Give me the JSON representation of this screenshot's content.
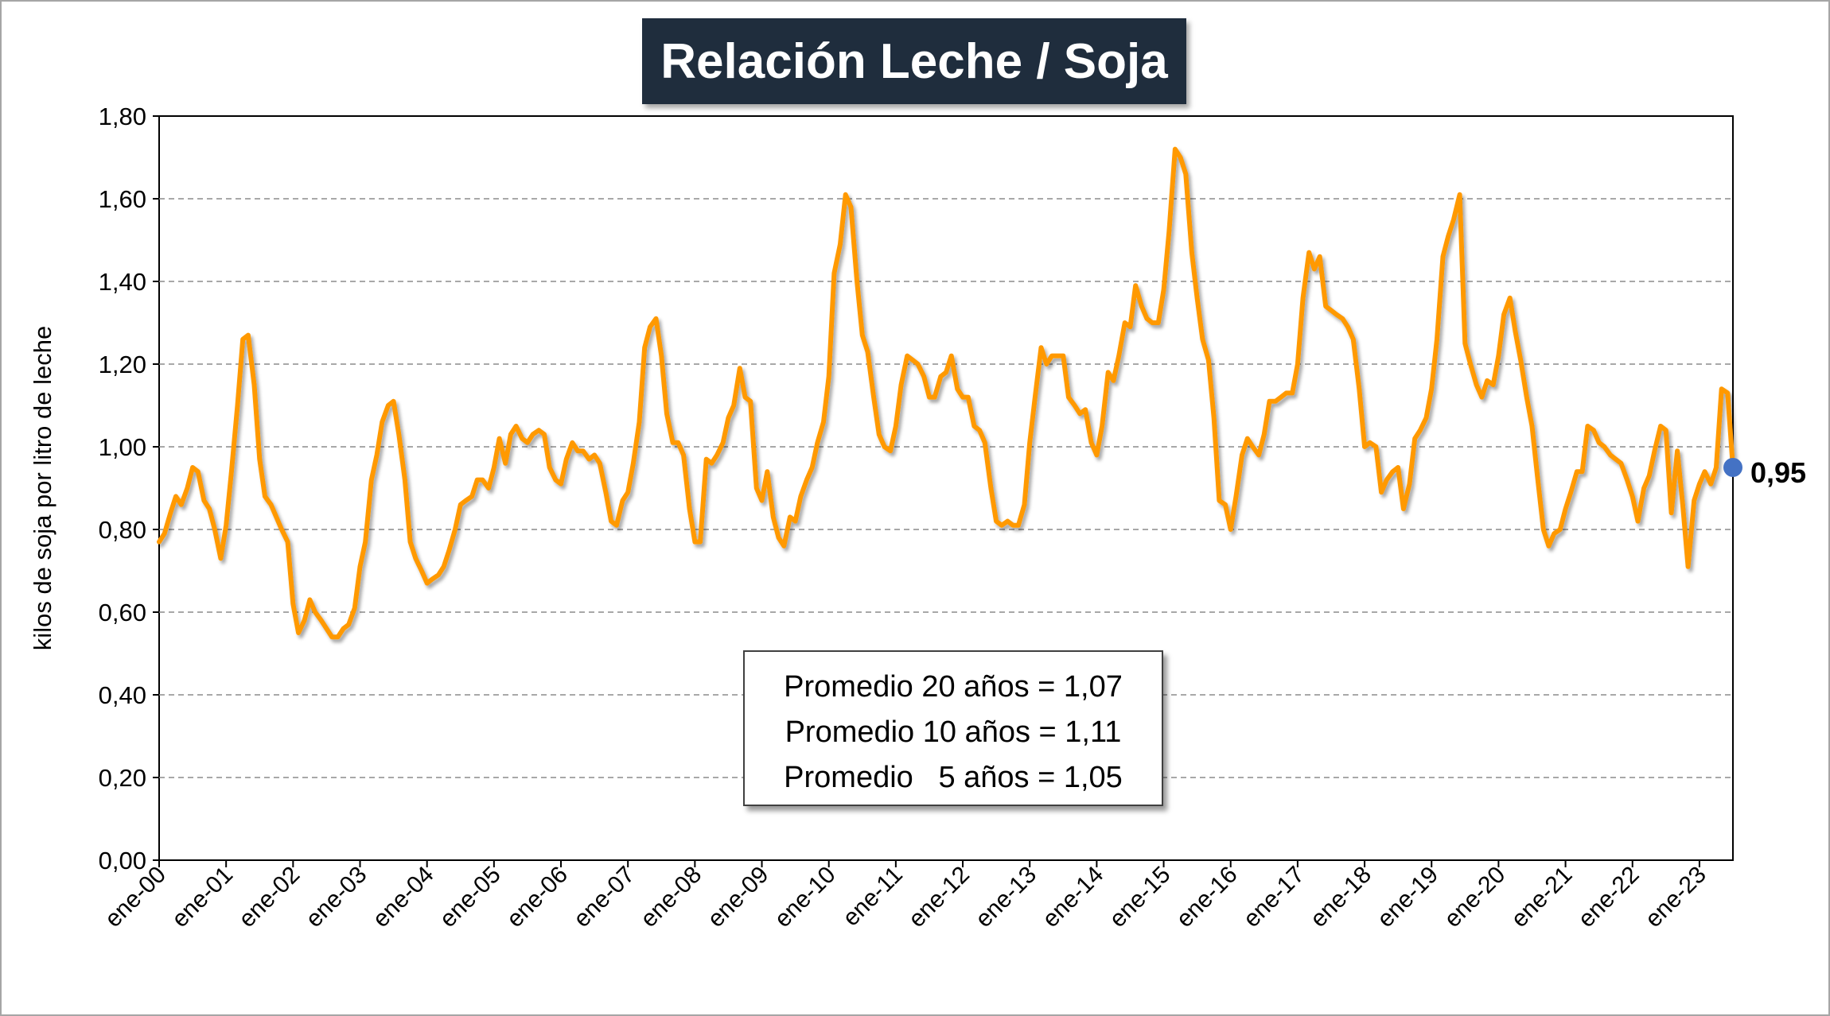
{
  "chart_data": {
    "type": "line",
    "title": "Relación Leche / Soja",
    "ylabel": "kilos de soja por litro de leche",
    "xlabel": "",
    "ylim": [
      0,
      1.8
    ],
    "y_ticks": [
      "0,00",
      "0,20",
      "0,40",
      "0,60",
      "0,80",
      "1,00",
      "1,20",
      "1,40",
      "1,60",
      "1,80"
    ],
    "x_ticks": [
      "ene-00",
      "ene-01",
      "ene-02",
      "ene-03",
      "ene-04",
      "ene-05",
      "ene-06",
      "ene-07",
      "ene-08",
      "ene-09",
      "ene-10",
      "ene-11",
      "ene-12",
      "ene-13",
      "ene-14",
      "ene-15",
      "ene-16",
      "ene-17",
      "ene-18",
      "ene-19",
      "ene-20",
      "ene-21",
      "ene-22",
      "ene-23"
    ],
    "x_start": "ene-00",
    "x_end": "jul-23",
    "grid": "horizontal dashed",
    "series": [
      {
        "color": "#ff9900",
        "points": [
          [
            0.0,
            0.77
          ],
          [
            0.08,
            0.79
          ],
          [
            0.17,
            0.84
          ],
          [
            0.25,
            0.88
          ],
          [
            0.33,
            0.86
          ],
          [
            0.42,
            0.9
          ],
          [
            0.5,
            0.95
          ],
          [
            0.58,
            0.94
          ],
          [
            0.67,
            0.87
          ],
          [
            0.75,
            0.85
          ],
          [
            0.83,
            0.8
          ],
          [
            0.92,
            0.73
          ],
          [
            1.0,
            0.81
          ],
          [
            1.08,
            0.94
          ],
          [
            1.17,
            1.1
          ],
          [
            1.25,
            1.26
          ],
          [
            1.33,
            1.27
          ],
          [
            1.42,
            1.15
          ],
          [
            1.5,
            0.97
          ],
          [
            1.58,
            0.88
          ],
          [
            1.67,
            0.86
          ],
          [
            1.75,
            0.83
          ],
          [
            1.83,
            0.8
          ],
          [
            1.92,
            0.77
          ],
          [
            2.0,
            0.62
          ],
          [
            2.08,
            0.55
          ],
          [
            2.17,
            0.58
          ],
          [
            2.25,
            0.63
          ],
          [
            2.33,
            0.6
          ],
          [
            2.42,
            0.58
          ],
          [
            2.5,
            0.56
          ],
          [
            2.58,
            0.54
          ],
          [
            2.67,
            0.54
          ],
          [
            2.75,
            0.56
          ],
          [
            2.83,
            0.57
          ],
          [
            2.92,
            0.61
          ],
          [
            3.0,
            0.71
          ],
          [
            3.08,
            0.77
          ],
          [
            3.17,
            0.92
          ],
          [
            3.25,
            0.98
          ],
          [
            3.33,
            1.06
          ],
          [
            3.42,
            1.1
          ],
          [
            3.5,
            1.11
          ],
          [
            3.58,
            1.03
          ],
          [
            3.67,
            0.92
          ],
          [
            3.75,
            0.77
          ],
          [
            3.83,
            0.73
          ],
          [
            3.92,
            0.7
          ],
          [
            4.0,
            0.67
          ],
          [
            4.08,
            0.68
          ],
          [
            4.17,
            0.69
          ],
          [
            4.25,
            0.71
          ],
          [
            4.33,
            0.75
          ],
          [
            4.42,
            0.8
          ],
          [
            4.5,
            0.86
          ],
          [
            4.58,
            0.87
          ],
          [
            4.67,
            0.88
          ],
          [
            4.75,
            0.92
          ],
          [
            4.83,
            0.92
          ],
          [
            4.92,
            0.9
          ],
          [
            5.0,
            0.95
          ],
          [
            5.08,
            1.02
          ],
          [
            5.17,
            0.96
          ],
          [
            5.25,
            1.03
          ],
          [
            5.33,
            1.05
          ],
          [
            5.42,
            1.02
          ],
          [
            5.5,
            1.01
          ],
          [
            5.58,
            1.03
          ],
          [
            5.67,
            1.04
          ],
          [
            5.75,
            1.03
          ],
          [
            5.83,
            0.95
          ],
          [
            5.92,
            0.92
          ],
          [
            6.0,
            0.91
          ],
          [
            6.08,
            0.97
          ],
          [
            6.17,
            1.01
          ],
          [
            6.25,
            0.99
          ],
          [
            6.33,
            0.99
          ],
          [
            6.42,
            0.97
          ],
          [
            6.5,
            0.98
          ],
          [
            6.58,
            0.96
          ],
          [
            6.67,
            0.89
          ],
          [
            6.75,
            0.82
          ],
          [
            6.83,
            0.81
          ],
          [
            6.92,
            0.87
          ],
          [
            7.0,
            0.89
          ],
          [
            7.08,
            0.96
          ],
          [
            7.17,
            1.06
          ],
          [
            7.25,
            1.24
          ],
          [
            7.33,
            1.29
          ],
          [
            7.42,
            1.31
          ],
          [
            7.5,
            1.22
          ],
          [
            7.58,
            1.08
          ],
          [
            7.67,
            1.01
          ],
          [
            7.75,
            1.01
          ],
          [
            7.83,
            0.98
          ],
          [
            7.92,
            0.85
          ],
          [
            8.0,
            0.77
          ],
          [
            8.08,
            0.77
          ],
          [
            8.17,
            0.97
          ],
          [
            8.25,
            0.96
          ],
          [
            8.33,
            0.98
          ],
          [
            8.42,
            1.01
          ],
          [
            8.5,
            1.07
          ],
          [
            8.58,
            1.1
          ],
          [
            8.67,
            1.19
          ],
          [
            8.75,
            1.12
          ],
          [
            8.83,
            1.11
          ],
          [
            8.92,
            0.9
          ],
          [
            9.0,
            0.87
          ],
          [
            9.08,
            0.94
          ],
          [
            9.17,
            0.83
          ],
          [
            9.25,
            0.78
          ],
          [
            9.33,
            0.76
          ],
          [
            9.42,
            0.83
          ],
          [
            9.5,
            0.82
          ],
          [
            9.58,
            0.88
          ],
          [
            9.67,
            0.92
          ],
          [
            9.75,
            0.95
          ],
          [
            9.83,
            1.01
          ],
          [
            9.92,
            1.06
          ],
          [
            10.0,
            1.17
          ],
          [
            10.08,
            1.42
          ],
          [
            10.17,
            1.49
          ],
          [
            10.25,
            1.61
          ],
          [
            10.33,
            1.58
          ],
          [
            10.42,
            1.4
          ],
          [
            10.5,
            1.27
          ],
          [
            10.58,
            1.23
          ],
          [
            10.67,
            1.12
          ],
          [
            10.75,
            1.03
          ],
          [
            10.83,
            1.0
          ],
          [
            10.92,
            0.99
          ],
          [
            11.0,
            1.05
          ],
          [
            11.08,
            1.15
          ],
          [
            11.17,
            1.22
          ],
          [
            11.25,
            1.21
          ],
          [
            11.33,
            1.2
          ],
          [
            11.42,
            1.17
          ],
          [
            11.5,
            1.12
          ],
          [
            11.58,
            1.12
          ],
          [
            11.67,
            1.17
          ],
          [
            11.75,
            1.18
          ],
          [
            11.83,
            1.22
          ],
          [
            11.92,
            1.14
          ],
          [
            12.0,
            1.12
          ],
          [
            12.08,
            1.12
          ],
          [
            12.17,
            1.05
          ],
          [
            12.25,
            1.04
          ],
          [
            12.33,
            1.01
          ],
          [
            12.42,
            0.9
          ],
          [
            12.5,
            0.82
          ],
          [
            12.58,
            0.81
          ],
          [
            12.67,
            0.82
          ],
          [
            12.75,
            0.81
          ],
          [
            12.83,
            0.81
          ],
          [
            12.92,
            0.86
          ],
          [
            13.0,
            1.01
          ],
          [
            13.08,
            1.12
          ],
          [
            13.17,
            1.24
          ],
          [
            13.25,
            1.2
          ],
          [
            13.33,
            1.22
          ],
          [
            13.42,
            1.22
          ],
          [
            13.5,
            1.22
          ],
          [
            13.58,
            1.12
          ],
          [
            13.67,
            1.1
          ],
          [
            13.75,
            1.08
          ],
          [
            13.83,
            1.09
          ],
          [
            13.92,
            1.01
          ],
          [
            14.0,
            0.98
          ],
          [
            14.08,
            1.05
          ],
          [
            14.17,
            1.18
          ],
          [
            14.25,
            1.16
          ],
          [
            14.33,
            1.22
          ],
          [
            14.42,
            1.3
          ],
          [
            14.5,
            1.29
          ],
          [
            14.58,
            1.39
          ],
          [
            14.67,
            1.34
          ],
          [
            14.75,
            1.31
          ],
          [
            14.83,
            1.3
          ],
          [
            14.92,
            1.3
          ],
          [
            15.0,
            1.38
          ],
          [
            15.08,
            1.52
          ],
          [
            15.17,
            1.72
          ],
          [
            15.25,
            1.7
          ],
          [
            15.33,
            1.66
          ],
          [
            15.42,
            1.47
          ],
          [
            15.5,
            1.36
          ],
          [
            15.58,
            1.26
          ],
          [
            15.67,
            1.21
          ],
          [
            15.75,
            1.07
          ],
          [
            15.83,
            0.87
          ],
          [
            15.92,
            0.86
          ],
          [
            16.0,
            0.8
          ],
          [
            16.08,
            0.88
          ],
          [
            16.17,
            0.98
          ],
          [
            16.25,
            1.02
          ],
          [
            16.33,
            1.0
          ],
          [
            16.42,
            0.98
          ],
          [
            16.5,
            1.03
          ],
          [
            16.58,
            1.11
          ],
          [
            16.67,
            1.11
          ],
          [
            16.75,
            1.12
          ],
          [
            16.83,
            1.13
          ],
          [
            16.92,
            1.13
          ],
          [
            17.0,
            1.2
          ],
          [
            17.08,
            1.36
          ],
          [
            17.17,
            1.47
          ],
          [
            17.25,
            1.43
          ],
          [
            17.33,
            1.46
          ],
          [
            17.42,
            1.34
          ],
          [
            17.5,
            1.33
          ],
          [
            17.58,
            1.32
          ],
          [
            17.67,
            1.31
          ],
          [
            17.75,
            1.29
          ],
          [
            17.83,
            1.26
          ],
          [
            17.92,
            1.14
          ],
          [
            18.0,
            1.0
          ],
          [
            18.08,
            1.01
          ],
          [
            18.17,
            1.0
          ],
          [
            18.25,
            0.89
          ],
          [
            18.33,
            0.92
          ],
          [
            18.42,
            0.94
          ],
          [
            18.5,
            0.95
          ],
          [
            18.58,
            0.85
          ],
          [
            18.67,
            0.91
          ],
          [
            18.75,
            1.02
          ],
          [
            18.83,
            1.04
          ],
          [
            18.92,
            1.07
          ],
          [
            19.0,
            1.14
          ],
          [
            19.08,
            1.26
          ],
          [
            19.17,
            1.46
          ],
          [
            19.25,
            1.51
          ],
          [
            19.33,
            1.55
          ],
          [
            19.42,
            1.61
          ],
          [
            19.5,
            1.25
          ],
          [
            19.58,
            1.2
          ],
          [
            19.67,
            1.15
          ],
          [
            19.75,
            1.12
          ],
          [
            19.83,
            1.16
          ],
          [
            19.92,
            1.15
          ],
          [
            20.0,
            1.22
          ],
          [
            20.08,
            1.32
          ],
          [
            20.17,
            1.36
          ],
          [
            20.25,
            1.28
          ],
          [
            20.33,
            1.21
          ],
          [
            20.42,
            1.12
          ],
          [
            20.5,
            1.05
          ],
          [
            20.58,
            0.93
          ],
          [
            20.67,
            0.8
          ],
          [
            20.75,
            0.76
          ],
          [
            20.83,
            0.79
          ],
          [
            20.92,
            0.8
          ],
          [
            21.0,
            0.85
          ],
          [
            21.08,
            0.89
          ],
          [
            21.17,
            0.94
          ],
          [
            21.25,
            0.94
          ],
          [
            21.33,
            1.05
          ],
          [
            21.42,
            1.04
          ],
          [
            21.5,
            1.01
          ],
          [
            21.58,
            1.0
          ],
          [
            21.67,
            0.98
          ],
          [
            21.75,
            0.97
          ],
          [
            21.83,
            0.96
          ],
          [
            21.92,
            0.92
          ],
          [
            22.0,
            0.88
          ],
          [
            22.08,
            0.82
          ],
          [
            22.17,
            0.9
          ],
          [
            22.25,
            0.93
          ],
          [
            22.33,
            0.99
          ],
          [
            22.42,
            1.05
          ],
          [
            22.5,
            1.04
          ],
          [
            22.58,
            0.84
          ],
          [
            22.67,
            0.99
          ],
          [
            22.75,
            0.86
          ],
          [
            22.83,
            0.71
          ],
          [
            22.92,
            0.87
          ],
          [
            23.0,
            0.91
          ],
          [
            23.08,
            0.94
          ],
          [
            23.17,
            0.91
          ],
          [
            23.25,
            0.95
          ],
          [
            23.33,
            1.14
          ],
          [
            23.42,
            1.13
          ],
          [
            23.5,
            0.95
          ]
        ]
      }
    ],
    "last_value": 0.95,
    "last_value_label": "0,95",
    "last_point_color": "#4472c4",
    "annotation_lines": [
      "Promedio 20 años = 1,07",
      "Promedio 10 años = 1,11",
      "Promedio   5 años = 1,05"
    ]
  }
}
